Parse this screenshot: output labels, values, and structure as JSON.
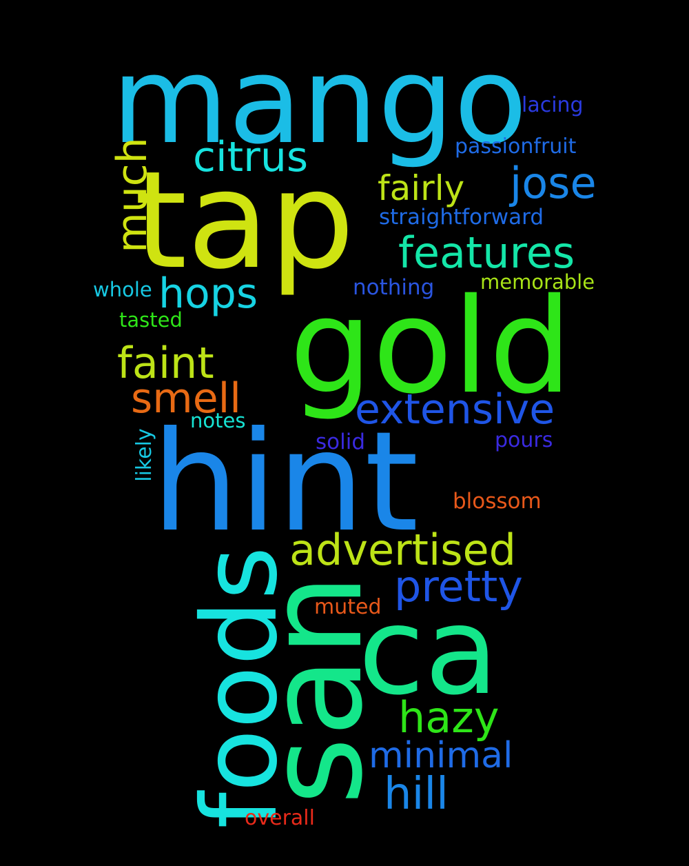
{
  "words": [
    {
      "text": "mango",
      "color": "#1bbde6",
      "orientation": "horizontal"
    },
    {
      "text": "tap",
      "color": "#cfe311",
      "orientation": "horizontal"
    },
    {
      "text": "gold",
      "color": "#2ee518",
      "orientation": "horizontal"
    },
    {
      "text": "hint",
      "color": "#1a86e8",
      "orientation": "horizontal"
    },
    {
      "text": "san",
      "color": "#14e68a",
      "orientation": "vertical"
    },
    {
      "text": "ca",
      "color": "#14e68a",
      "orientation": "horizontal"
    },
    {
      "text": "foods",
      "color": "#17e3df",
      "orientation": "vertical"
    },
    {
      "text": "much",
      "color": "#cfe311",
      "orientation": "vertical"
    },
    {
      "text": "citrus",
      "color": "#17e3df",
      "orientation": "horizontal"
    },
    {
      "text": "fairly",
      "color": "#bde317",
      "orientation": "horizontal"
    },
    {
      "text": "jose",
      "color": "#1a86e8",
      "orientation": "horizontal"
    },
    {
      "text": "lacing",
      "color": "#2a3ae0",
      "orientation": "horizontal"
    },
    {
      "text": "passionfruit",
      "color": "#1f6be6",
      "orientation": "horizontal"
    },
    {
      "text": "straightforward",
      "color": "#1f6be6",
      "orientation": "horizontal"
    },
    {
      "text": "features",
      "color": "#14e6a8",
      "orientation": "horizontal"
    },
    {
      "text": "hops",
      "color": "#17d3e3",
      "orientation": "horizontal"
    },
    {
      "text": "whole",
      "color": "#17c8e3",
      "orientation": "horizontal"
    },
    {
      "text": "nothing",
      "color": "#2a55e0",
      "orientation": "horizontal"
    },
    {
      "text": "memorable",
      "color": "#a8e317",
      "orientation": "horizontal"
    },
    {
      "text": "tasted",
      "color": "#2ee518",
      "orientation": "horizontal"
    },
    {
      "text": "faint",
      "color": "#bde317",
      "orientation": "horizontal"
    },
    {
      "text": "smell",
      "color": "#e86a14",
      "orientation": "horizontal"
    },
    {
      "text": "extensive",
      "color": "#1f55e6",
      "orientation": "horizontal"
    },
    {
      "text": "notes",
      "color": "#17e3d3",
      "orientation": "horizontal"
    },
    {
      "text": "likely",
      "color": "#17c8e3",
      "orientation": "vertical"
    },
    {
      "text": "solid",
      "color": "#3a2ae0",
      "orientation": "horizontal"
    },
    {
      "text": "pours",
      "color": "#3a2ae0",
      "orientation": "horizontal"
    },
    {
      "text": "blossom",
      "color": "#e8581a",
      "orientation": "horizontal"
    },
    {
      "text": "advertised",
      "color": "#bde317",
      "orientation": "horizontal"
    },
    {
      "text": "pretty",
      "color": "#1f55e6",
      "orientation": "horizontal"
    },
    {
      "text": "muted",
      "color": "#e8581a",
      "orientation": "horizontal"
    },
    {
      "text": "hazy",
      "color": "#2ee518",
      "orientation": "horizontal"
    },
    {
      "text": "minimal",
      "color": "#1f6be6",
      "orientation": "horizontal"
    },
    {
      "text": "hill",
      "color": "#1a86e8",
      "orientation": "horizontal"
    },
    {
      "text": "overall",
      "color": "#e82a1a",
      "orientation": "horizontal"
    }
  ]
}
